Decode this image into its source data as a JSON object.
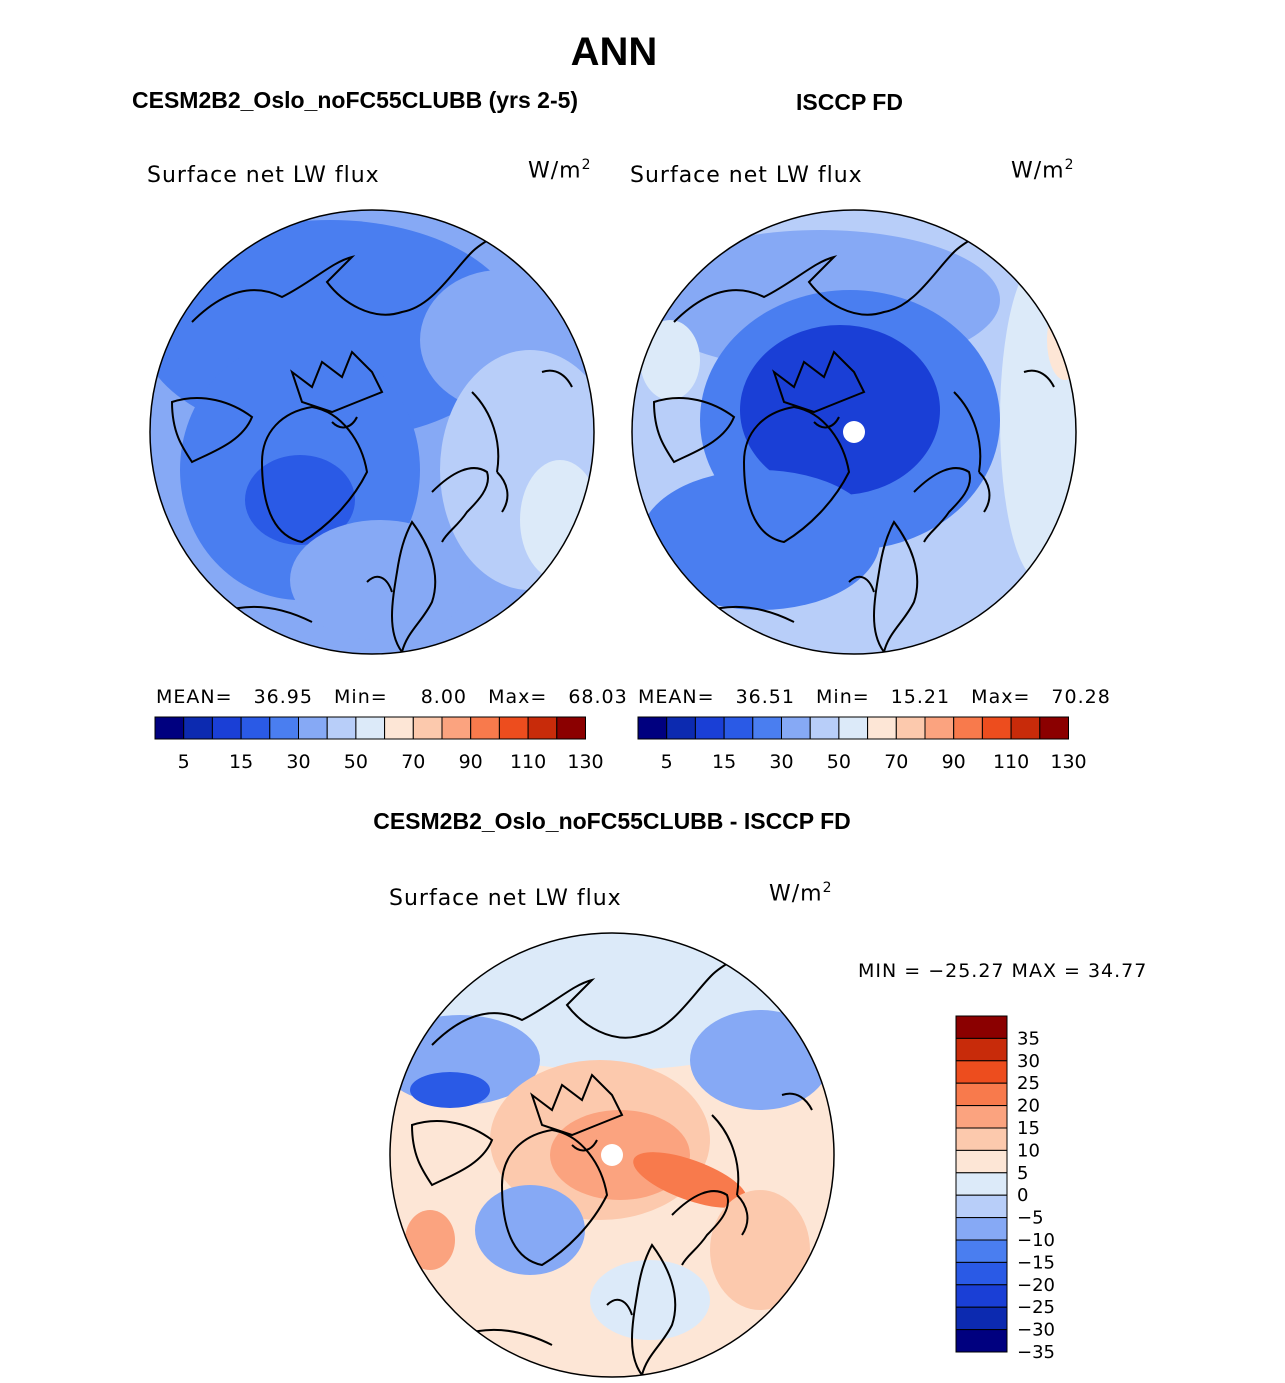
{
  "page_title": "ANN",
  "panels": [
    {
      "case_title": "CESM2B2_Oslo_noFC55CLUBB (yrs 2-5)",
      "variable": "Surface net LW flux",
      "units": "W/m",
      "units_exp": "2",
      "stats": {
        "mean_label": "MEAN=",
        "mean": "36.95",
        "min_label": "Min=",
        "min": "8.00",
        "max_label": "Max=",
        "max": "68.03"
      }
    },
    {
      "case_title": "ISCCP FD",
      "variable": "Surface net LW flux",
      "units": "W/m",
      "units_exp": "2",
      "stats": {
        "mean_label": "MEAN=",
        "mean": "36.51",
        "min_label": "Min=",
        "min": "15.21",
        "max_label": "Max=",
        "max": "70.28"
      }
    },
    {
      "case_title": "CESM2B2_Oslo_noFC55CLUBB - ISCCP FD",
      "variable": "Surface net LW flux",
      "units": "W/m",
      "units_exp": "2",
      "stats_text": "MIN = −25.27 MAX =  34.77"
    }
  ],
  "colors": {
    "abs_scale": [
      "#00007f",
      "#0c2ab0",
      "#1a3fd6",
      "#2a5ae6",
      "#4a7ef0",
      "#86a9f5",
      "#b8cef9",
      "#dceaf9",
      "#fde6d6",
      "#fcc9ad",
      "#fba37f",
      "#f87a4c",
      "#ed4d1e",
      "#c82b0a",
      "#8b0000"
    ],
    "diff_scale": [
      "#00007f",
      "#0c2ab0",
      "#1a3fd6",
      "#2a5ae6",
      "#4a7ef0",
      "#86a9f5",
      "#b8cef9",
      "#dceaf9",
      "#fde6d6",
      "#fcc9ad",
      "#fba37f",
      "#f87a4c",
      "#ed4d1e",
      "#c82b0a",
      "#8b0000"
    ]
  },
  "chart_data": [
    {
      "type": "heatmap",
      "title": "CESM2B2_Oslo_noFC55CLUBB (yrs 2-5)",
      "variable": "Surface net LW flux",
      "units": "W/m^2",
      "projection": "north polar stereographic",
      "colorbar_ticks": [
        "5",
        "15",
        "30",
        "50",
        "70",
        "90",
        "110",
        "130"
      ],
      "levels": [
        5,
        10,
        15,
        20,
        30,
        40,
        50,
        60,
        70,
        80,
        90,
        100,
        110,
        120,
        130
      ],
      "mean": 36.95,
      "min": 8.0,
      "max": 68.03
    },
    {
      "type": "heatmap",
      "title": "ISCCP FD",
      "variable": "Surface net LW flux",
      "units": "W/m^2",
      "projection": "north polar stereographic",
      "colorbar_ticks": [
        "5",
        "15",
        "30",
        "50",
        "70",
        "90",
        "110",
        "130"
      ],
      "levels": [
        5,
        10,
        15,
        20,
        30,
        40,
        50,
        60,
        70,
        80,
        90,
        100,
        110,
        120,
        130
      ],
      "mean": 36.51,
      "min": 15.21,
      "max": 70.28
    },
    {
      "type": "heatmap",
      "title": "CESM2B2_Oslo_noFC55CLUBB - ISCCP FD",
      "variable": "Surface net LW flux",
      "units": "W/m^2",
      "projection": "north polar stereographic",
      "colorbar_ticks": [
        "35",
        "30",
        "25",
        "20",
        "15",
        "10",
        "5",
        "0",
        "−5",
        "−10",
        "−15",
        "−20",
        "−25",
        "−30",
        "−35"
      ],
      "min": -25.27,
      "max": 34.77
    }
  ]
}
